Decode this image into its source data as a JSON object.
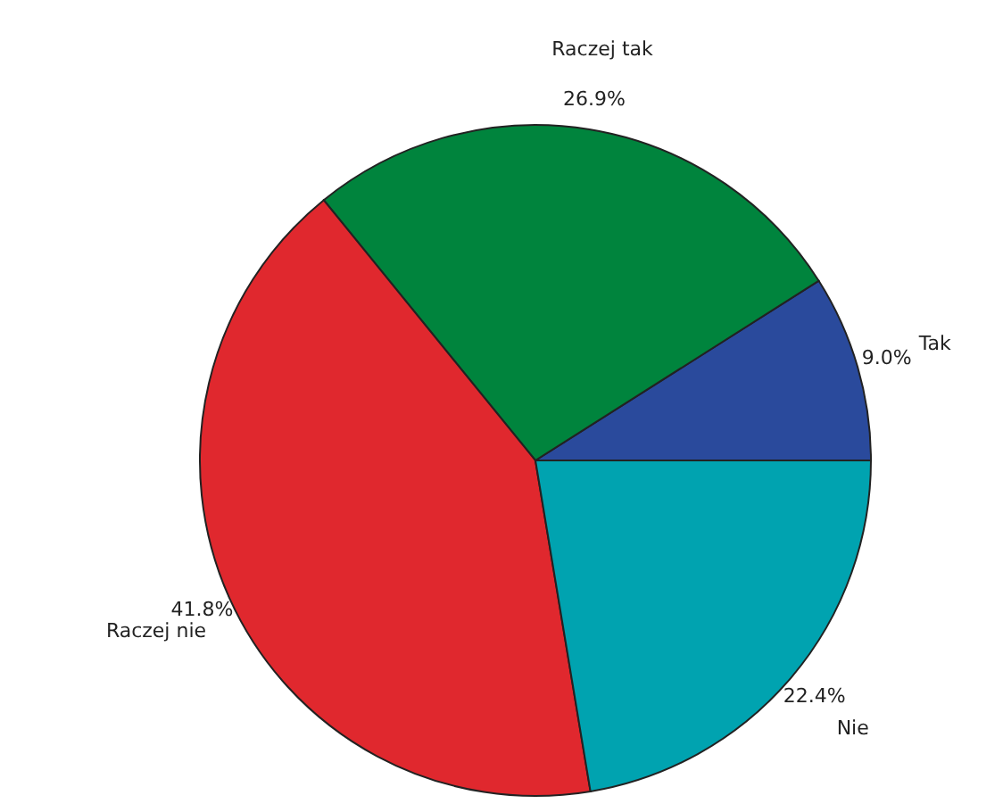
{
  "chart_data": {
    "type": "pie",
    "categories": [
      "Tak",
      "Raczej tak",
      "Raczej nie",
      "Nie"
    ],
    "values": [
      9.0,
      26.9,
      41.8,
      22.4
    ],
    "colors": [
      "#2a4a9c",
      "#00843d",
      "#e0282e",
      "#00a3b0"
    ],
    "value_labels": [
      "9.0%",
      "26.9%",
      "41.8%",
      "22.4%"
    ]
  }
}
